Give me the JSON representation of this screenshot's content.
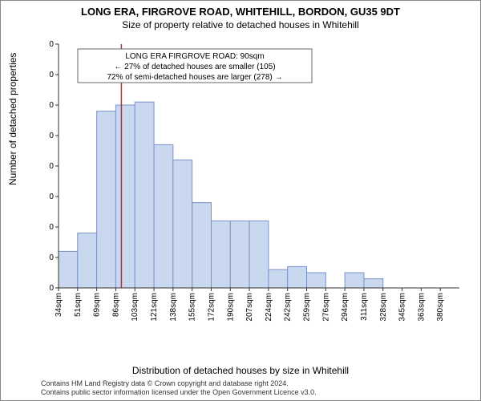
{
  "title_line1": "LONG ERA, FIRGROVE ROAD, WHITEHILL, BORDON, GU35 9DT",
  "title_line2": "Size of property relative to detached houses in Whitehill",
  "ylabel": "Number of detached properties",
  "xlabel": "Distribution of detached houses by size in Whitehill",
  "footer_line1": "Contains HM Land Registry data © Crown copyright and database right 2024.",
  "footer_line2": "Contains public sector information licensed under the Open Government Licence v3.0.",
  "annotation": {
    "line1": "LONG ERA FIRGROVE ROAD: 90sqm",
    "line2": "← 27% of detached houses are smaller (105)",
    "line3": "72% of semi-detached houses are larger (278) →"
  },
  "chart": {
    "type": "histogram",
    "ylim": [
      0,
      80
    ],
    "ytick_step": 10,
    "x_categories": [
      "34sqm",
      "51sqm",
      "69sqm",
      "86sqm",
      "103sqm",
      "121sqm",
      "138sqm",
      "155sqm",
      "172sqm",
      "190sqm",
      "207sqm",
      "224sqm",
      "242sqm",
      "259sqm",
      "276sqm",
      "294sqm",
      "311sqm",
      "328sqm",
      "345sqm",
      "363sqm",
      "380sqm"
    ],
    "x_values_numeric": [
      34,
      51,
      69,
      86,
      103,
      121,
      138,
      155,
      172,
      190,
      207,
      224,
      242,
      259,
      276,
      294,
      311,
      328,
      345,
      363,
      380
    ],
    "bar_heights": [
      12,
      18,
      58,
      60,
      61,
      47,
      42,
      28,
      22,
      22,
      22,
      6,
      7,
      5,
      0,
      5,
      3,
      0,
      0,
      0,
      0
    ],
    "bar_color": "#c9d8ef",
    "bar_border_color": "#7a93c4",
    "axis_color": "#333333",
    "grid_color": "#dddddd",
    "refline_x_value": 90,
    "refline_color": "#d62728",
    "background_color": "#ffffff",
    "tick_fontsize": 10,
    "label_fontsize": 12,
    "annotation_fontsize": 10,
    "annotation_border": "#666666",
    "annotation_bg": "#ffffff"
  }
}
